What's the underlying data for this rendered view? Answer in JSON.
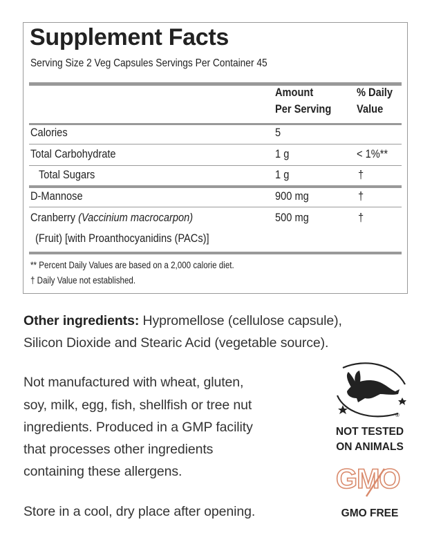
{
  "panel": {
    "title": "Supplement Facts",
    "serving_line": "Serving Size 2 Veg Capsules   Servings Per Container 45",
    "header": {
      "amount_line1": "Amount",
      "amount_line2": "Per Serving",
      "dv_line1": "% Daily",
      "dv_line2": "Value"
    },
    "rows": [
      {
        "name": "Calories",
        "amount": "5",
        "dv": ""
      },
      {
        "name": "Total Carbohydrate",
        "amount": "1 g",
        "dv": "< 1%**"
      },
      {
        "name": "Total Sugars",
        "amount": "1 g",
        "dv": "†"
      },
      {
        "name": "D-Mannose",
        "amount": "900 mg",
        "dv": "†"
      },
      {
        "name": "Cranberry",
        "name_italic": "(Vaccinium macrocarpon)",
        "name_line2": "(Fruit) [with Proanthocyanidins (PACs)]",
        "amount": "500 mg",
        "dv": "†"
      }
    ],
    "footnote1": "** Percent Daily Values are based on a 2,000 calorie diet.",
    "footnote2": "† Daily Value not established."
  },
  "other_ingredients": {
    "label": "Other ingredients:",
    "line1": " Hypromellose (cellulose capsule),",
    "line2": "Silicon Dioxide and Stearic Acid (vegetable source)."
  },
  "allergen": {
    "lines": [
      "Not manufactured with wheat, gluten,",
      "soy, milk, egg, fish, shellfish or tree nut",
      "ingredients. Produced in a GMP facility",
      "that processes other ingredients",
      "containing these allergens."
    ]
  },
  "storage": "Store in a cool, dry place after opening.",
  "badges": {
    "not_tested_line1": "NOT TESTED",
    "not_tested_line2": "ON ANIMALS",
    "gmo_logo_text": "GMO",
    "gmo_free": "GMO FREE",
    "bunny_icon": "leaping-bunny-icon",
    "registered_mark": "®"
  },
  "colors": {
    "text": "#222222",
    "rule": "#999999",
    "gmo_accent": "#d98a6c"
  }
}
